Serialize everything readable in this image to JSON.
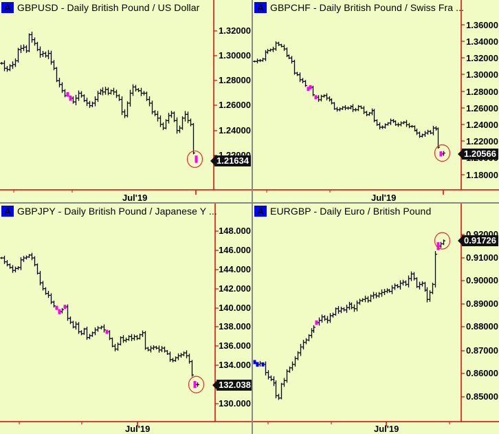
{
  "app": {
    "layout": "2x2 chart grid"
  },
  "colors": {
    "background": "#f0fcc4",
    "axis": "#e00000",
    "bar": "#000000",
    "highlight": "#ff00ff",
    "blue_bar": "#0000ff",
    "badge": "#0000ff",
    "circle": "#e03030",
    "label_bg": "#111111"
  },
  "panes": [
    {
      "badge": "A",
      "title": "GBPUSD - Daily  British Pound / US Dollar",
      "last_value": "1.21634",
      "x_label": "Jul'19",
      "y_ticks": [
        "1.32000",
        "1.30000",
        "1.28000",
        "1.26000",
        "1.24000",
        "1.22000"
      ]
    },
    {
      "badge": "A",
      "title": "GBPCHF - Daily  British Pound / Swiss Fra ...",
      "last_value": "1.20566",
      "x_label": "Jul'19",
      "y_ticks": [
        "1.36000",
        "1.34000",
        "1.32000",
        "1.30000",
        "1.28000",
        "1.26000",
        "1.24000",
        "1.22000",
        "1.20000",
        "1.18000"
      ]
    },
    {
      "badge": "A",
      "title": "GBPJPY - Daily  British Pound / Japanese Y ...",
      "last_value": "132.038",
      "x_label": "Jul'19",
      "y_ticks": [
        "148.000",
        "146.000",
        "144.000",
        "142.000",
        "140.000",
        "138.000",
        "136.000",
        "134.000",
        "132.000",
        "130.000"
      ]
    },
    {
      "badge": "A",
      "title": "EURGBP - Daily  Euro / British Pound",
      "last_value": "0.91726",
      "x_label": "Jul'19",
      "y_ticks": [
        "0.92000",
        "0.91000",
        "0.90000",
        "0.89000",
        "0.88000",
        "0.87000",
        "0.86000",
        "0.85000"
      ]
    }
  ],
  "chart_data": [
    {
      "type": "ohlc",
      "title": "GBPUSD - Daily British Pound / US Dollar",
      "xlabel": "",
      "ylabel": "",
      "x_ticks": [
        "Jul'19"
      ],
      "ylim": [
        1.205,
        1.335
      ],
      "last": 1.21634,
      "closes": [
        1.294,
        1.29,
        1.289,
        1.292,
        1.293,
        1.296,
        1.305,
        1.306,
        1.307,
        1.304,
        1.317,
        1.313,
        1.31,
        1.305,
        1.301,
        1.302,
        1.3,
        1.302,
        1.295,
        1.29,
        1.28,
        1.277,
        1.272,
        1.268,
        1.269,
        1.266,
        1.263,
        1.266,
        1.27,
        1.268,
        1.264,
        1.262,
        1.26,
        1.262,
        1.265,
        1.27,
        1.272,
        1.271,
        1.273,
        1.27,
        1.272,
        1.271,
        1.268,
        1.265,
        1.255,
        1.252,
        1.262,
        1.27,
        1.275,
        1.273,
        1.272,
        1.27,
        1.27,
        1.265,
        1.262,
        1.255,
        1.253,
        1.25,
        1.245,
        1.242,
        1.248,
        1.252,
        1.254,
        1.248,
        1.24,
        1.242,
        1.25,
        1.253,
        1.248,
        1.245,
        1.222,
        1.217
      ],
      "highlight_indices": [
        24,
        25,
        71
      ]
    },
    {
      "type": "ohlc",
      "title": "GBPCHF - Daily British Pound / Swiss Franc",
      "xlabel": "",
      "ylabel": "",
      "x_ticks": [
        "Jul'19"
      ],
      "ylim": [
        1.17,
        1.38
      ],
      "last": 1.20566,
      "closes": [
        1.316,
        1.317,
        1.317,
        1.319,
        1.327,
        1.329,
        1.33,
        1.331,
        1.338,
        1.336,
        1.334,
        1.331,
        1.323,
        1.32,
        1.316,
        1.302,
        1.3,
        1.294,
        1.292,
        1.287,
        1.283,
        1.285,
        1.276,
        1.273,
        1.27,
        1.274,
        1.275,
        1.272,
        1.27,
        1.266,
        1.259,
        1.258,
        1.259,
        1.261,
        1.26,
        1.26,
        1.262,
        1.258,
        1.258,
        1.262,
        1.26,
        1.255,
        1.252,
        1.254,
        1.257,
        1.245,
        1.24,
        1.237,
        1.237,
        1.24,
        1.242,
        1.245,
        1.244,
        1.24,
        1.24,
        1.242,
        1.243,
        1.24,
        1.238,
        1.238,
        1.233,
        1.23,
        1.226,
        1.228,
        1.23,
        1.232,
        1.23,
        1.236,
        1.235,
        1.213,
        1.205,
        1.206
      ],
      "highlight_indices": [
        20,
        21,
        23,
        70
      ]
    },
    {
      "type": "ohlc",
      "title": "GBPJPY - Daily British Pound / Japanese Yen",
      "xlabel": "",
      "ylabel": "",
      "x_ticks": [
        "Jul'19"
      ],
      "ylim": [
        128.5,
        150.0
      ],
      "last": 132.038,
      "closes": [
        145.2,
        144.8,
        144.5,
        144.2,
        143.9,
        144.1,
        144.2,
        145.0,
        145.2,
        145.3,
        145.5,
        145.2,
        144.5,
        143.6,
        142.6,
        142.0,
        141.5,
        141.3,
        140.6,
        140.2,
        140.0,
        139.6,
        139.8,
        140.1,
        138.9,
        138.5,
        138.0,
        138.3,
        137.5,
        137.3,
        137.8,
        136.9,
        137.1,
        137.4,
        137.7,
        137.9,
        138.0,
        137.7,
        137.5,
        136.8,
        136.0,
        135.7,
        136.2,
        136.9,
        136.6,
        136.7,
        137.0,
        136.8,
        137.0,
        136.8,
        137.2,
        137.4,
        135.8,
        135.6,
        135.8,
        135.9,
        135.8,
        135.6,
        135.8,
        135.5,
        135.2,
        134.6,
        134.5,
        134.8,
        135.0,
        135.1,
        135.3,
        135.0,
        134.4,
        133.0,
        132.0,
        132.0
      ],
      "highlight_indices": [
        20,
        21,
        23,
        38,
        70
      ]
    },
    {
      "type": "ohlc",
      "title": "EURGBP - Daily Euro / British Pound",
      "xlabel": "",
      "ylabel": "",
      "x_ticks": [
        "Jul'19"
      ],
      "ylim": [
        0.843,
        0.924
      ],
      "last": 0.91726,
      "closes": [
        0.865,
        0.864,
        0.8645,
        0.864,
        0.8605,
        0.8585,
        0.8575,
        0.856,
        0.8505,
        0.8495,
        0.8555,
        0.857,
        0.861,
        0.8625,
        0.864,
        0.8665,
        0.869,
        0.8715,
        0.8735,
        0.8745,
        0.8765,
        0.8785,
        0.88,
        0.882,
        0.883,
        0.8845,
        0.8835,
        0.883,
        0.885,
        0.8855,
        0.888,
        0.887,
        0.888,
        0.8875,
        0.8885,
        0.89,
        0.8885,
        0.888,
        0.8905,
        0.8915,
        0.892,
        0.8925,
        0.8915,
        0.8935,
        0.894,
        0.8935,
        0.8945,
        0.895,
        0.8955,
        0.896,
        0.8955,
        0.897,
        0.898,
        0.8975,
        0.899,
        0.8995,
        0.8985,
        0.901,
        0.903,
        0.901,
        0.8975,
        0.8985,
        0.899,
        0.896,
        0.892,
        0.895,
        0.8985,
        0.9115,
        0.915,
        0.916,
        0.9173
      ],
      "blue_indices": [
        0,
        1,
        3
      ],
      "highlight_indices": [
        23,
        68
      ]
    }
  ]
}
